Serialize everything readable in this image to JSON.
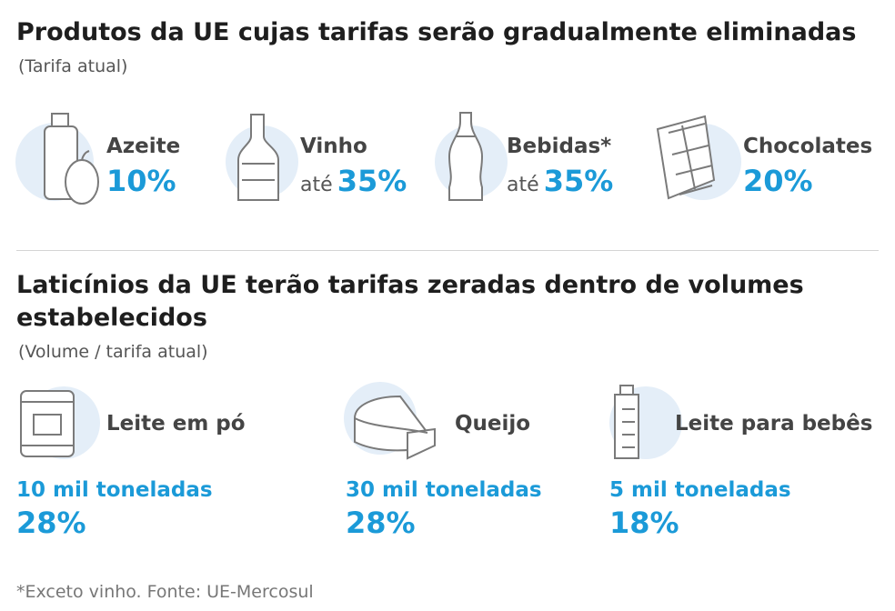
{
  "section1": {
    "title": "Produtos da UE cujas tarifas serão gradualmente eliminadas",
    "subtitle": "(Tarifa atual)",
    "items": [
      {
        "name": "Azeite",
        "rate": "10%"
      },
      {
        "name": "Vinho",
        "prefix": "até",
        "rate": "35%"
      },
      {
        "name": "Bebidas*",
        "prefix": "até",
        "rate": "35%"
      },
      {
        "name": "Chocolates",
        "rate": "20%"
      }
    ]
  },
  "section2": {
    "title": "Laticínios da UE terão tarifas zeradas dentro de volumes estabelecidos",
    "subtitle": "(Volume / tarifa atual)",
    "items": [
      {
        "name": "Leite em pó",
        "volume": "10 mil toneladas",
        "rate": "28%"
      },
      {
        "name": "Queijo",
        "volume": "30 mil toneladas",
        "rate": "28%"
      },
      {
        "name": "Leite para bebês",
        "volume": "5 mil toneladas",
        "rate": "18%"
      }
    ]
  },
  "footnote": "*Exceto vinho. Fonte: UE-Mercosul"
}
